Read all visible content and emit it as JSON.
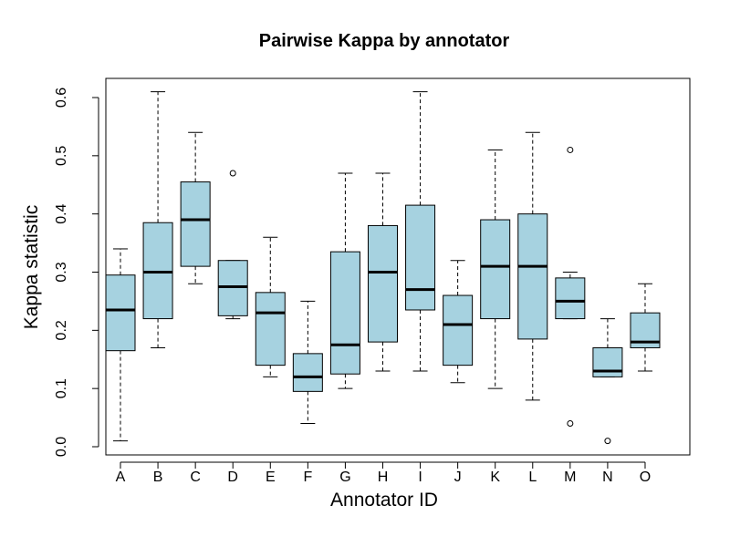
{
  "chart_data": {
    "type": "box",
    "title": "Pairwise Kappa by annotator",
    "xlabel": "Annotator ID",
    "ylabel": "Kappa statistic",
    "ylim": [
      0,
      0.6
    ],
    "yticks": [
      "0.0",
      "0.1",
      "0.2",
      "0.3",
      "0.4",
      "0.5",
      "0.6"
    ],
    "box_color": "#a6d2e0",
    "grid": false,
    "categories": [
      "A",
      "B",
      "C",
      "D",
      "E",
      "F",
      "G",
      "H",
      "I",
      "J",
      "K",
      "L",
      "M",
      "N",
      "O"
    ],
    "boxes": [
      {
        "min": 0.01,
        "q1": 0.165,
        "median": 0.235,
        "q3": 0.295,
        "max": 0.34,
        "outliers": []
      },
      {
        "min": 0.17,
        "q1": 0.22,
        "median": 0.3,
        "q3": 0.385,
        "max": 0.61,
        "outliers": []
      },
      {
        "min": 0.28,
        "q1": 0.31,
        "median": 0.39,
        "q3": 0.455,
        "max": 0.54,
        "outliers": []
      },
      {
        "min": 0.22,
        "q1": 0.225,
        "median": 0.275,
        "q3": 0.32,
        "max": 0.32,
        "outliers": [
          0.47
        ]
      },
      {
        "min": 0.12,
        "q1": 0.14,
        "median": 0.23,
        "q3": 0.265,
        "max": 0.36,
        "outliers": []
      },
      {
        "min": 0.04,
        "q1": 0.095,
        "median": 0.12,
        "q3": 0.16,
        "max": 0.25,
        "outliers": []
      },
      {
        "min": 0.1,
        "q1": 0.125,
        "median": 0.175,
        "q3": 0.335,
        "max": 0.47,
        "outliers": []
      },
      {
        "min": 0.13,
        "q1": 0.18,
        "median": 0.3,
        "q3": 0.38,
        "max": 0.47,
        "outliers": []
      },
      {
        "min": 0.13,
        "q1": 0.235,
        "median": 0.27,
        "q3": 0.415,
        "max": 0.61,
        "outliers": []
      },
      {
        "min": 0.11,
        "q1": 0.14,
        "median": 0.21,
        "q3": 0.26,
        "max": 0.32,
        "outliers": []
      },
      {
        "min": 0.1,
        "q1": 0.22,
        "median": 0.31,
        "q3": 0.39,
        "max": 0.51,
        "outliers": []
      },
      {
        "min": 0.08,
        "q1": 0.185,
        "median": 0.31,
        "q3": 0.4,
        "max": 0.54,
        "outliers": []
      },
      {
        "min": 0.22,
        "q1": 0.22,
        "median": 0.25,
        "q3": 0.29,
        "max": 0.3,
        "outliers": [
          0.51,
          0.04
        ]
      },
      {
        "min": 0.12,
        "q1": 0.12,
        "median": 0.13,
        "q3": 0.17,
        "max": 0.22,
        "outliers": [
          0.01
        ]
      },
      {
        "min": 0.13,
        "q1": 0.17,
        "median": 0.18,
        "q3": 0.23,
        "max": 0.28,
        "outliers": []
      }
    ]
  }
}
